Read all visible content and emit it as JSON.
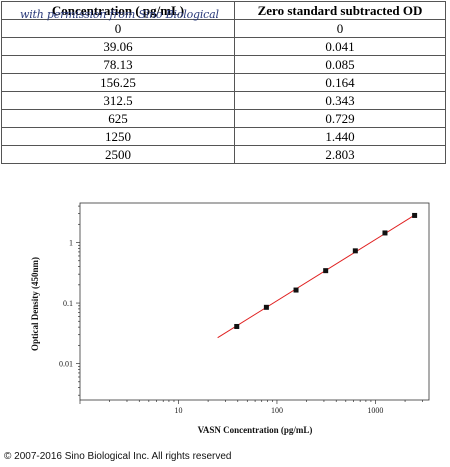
{
  "table": {
    "headers": [
      "Concentration ( pg/mL)",
      "Zero standard subtracted OD"
    ],
    "rows": [
      [
        "0",
        "0"
      ],
      [
        "39.06",
        "0.041"
      ],
      [
        "78.13",
        "0.085"
      ],
      [
        "156.25",
        "0.164"
      ],
      [
        "312.5",
        "0.343"
      ],
      [
        "625",
        "0.729"
      ],
      [
        "1250",
        "1.440"
      ],
      [
        "2500",
        "2.803"
      ]
    ]
  },
  "watermark": "with permission from Sino Biological",
  "chart_data": {
    "type": "scatter",
    "xlabel": "VASN Concentration (pg/mL)",
    "ylabel": "Optical Density (450nm)",
    "xscale": "log",
    "yscale": "log",
    "xlim": [
      1,
      3500
    ],
    "ylim": [
      0.0025,
      4.5
    ],
    "x_ticks": [
      "10",
      "100",
      "1000"
    ],
    "y_ticks": [
      "0.01",
      "0.1",
      "1"
    ],
    "x": [
      39.06,
      78.13,
      156.25,
      312.5,
      625,
      1250,
      2500
    ],
    "y": [
      0.041,
      0.085,
      0.164,
      0.343,
      0.729,
      1.44,
      2.803
    ],
    "fit_line": {
      "x": [
        25,
        2600
      ],
      "y": [
        0.0268,
        2.95
      ],
      "color": "#e02020"
    },
    "marker_color": "#111111",
    "grid": false
  },
  "copyright": "© 2007-2016 Sino Biological Inc. All rights reserved"
}
